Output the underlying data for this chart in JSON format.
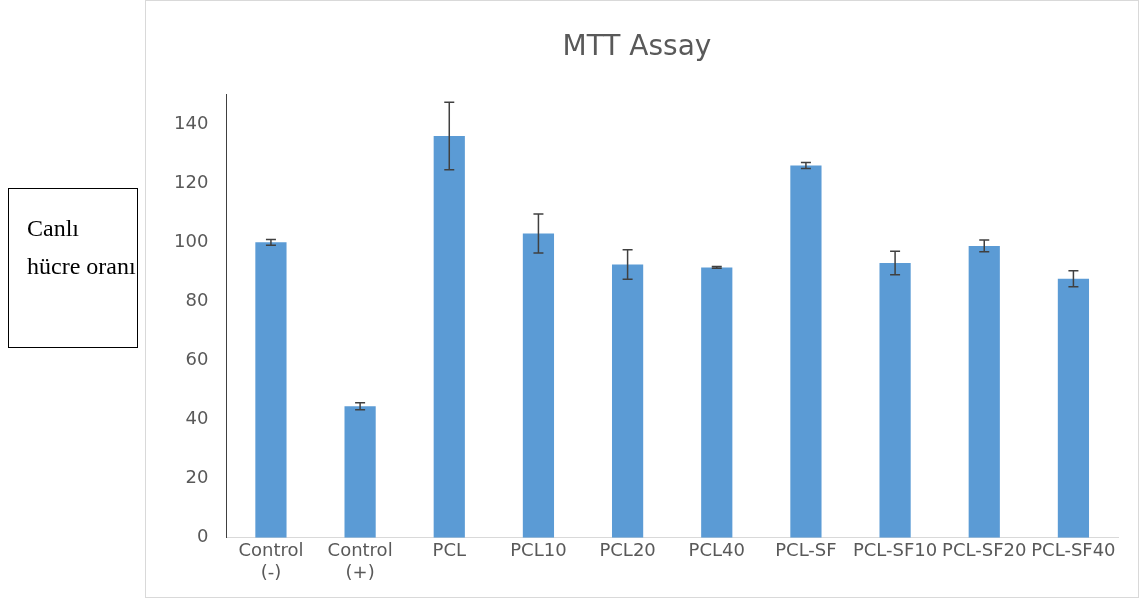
{
  "chart_data": {
    "type": "bar",
    "title": "MTT Assay",
    "ylabel": "Canlı hücre oranı",
    "categories": [
      "Control (-)",
      "Control (+)",
      "PCL",
      "PCL10",
      "PCL20",
      "PCL40",
      "PCL-SF",
      "PCL-SF10",
      "PCL-SF20",
      "PCL-SF40"
    ],
    "values": [
      100,
      44.5,
      136,
      103,
      92.5,
      91.5,
      126,
      93,
      98.8,
      87.7
    ],
    "errors": [
      1,
      1.2,
      11.4,
      6.6,
      5,
      0.3,
      1,
      4,
      2,
      2.7
    ],
    "color": "#5b9bd5",
    "ylim": [
      0,
      150
    ],
    "yticks": [
      0,
      20,
      40,
      60,
      80,
      100,
      120,
      140
    ],
    "grid": false,
    "legend": false
  }
}
